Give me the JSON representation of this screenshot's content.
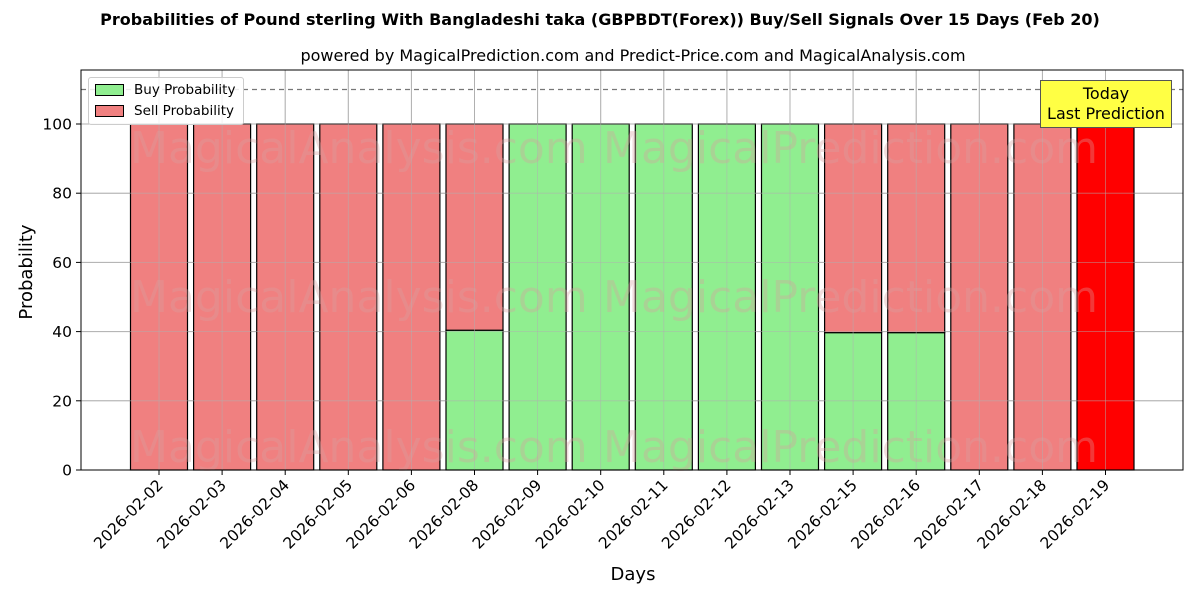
{
  "chart_data": {
    "type": "bar",
    "stacked": true,
    "title": "Probabilities of Pound sterling With Bangladeshi taka (GBPBDT(Forex)) Buy/Sell Signals Over 15 Days (Feb 20)",
    "subtitle": "powered by MagicalPrediction.com and Predict-Price.com and MagicalAnalysis.com",
    "xlabel": "Days",
    "ylabel": "Probability",
    "ylim": [
      0,
      115
    ],
    "yticks": [
      0,
      20,
      40,
      60,
      80,
      100
    ],
    "grid": true,
    "legend_position": "upper left",
    "reference_line": {
      "y": 110,
      "style": "dashed"
    },
    "categories": [
      "2026-02-02",
      "2026-02-03",
      "2026-02-04",
      "2026-02-05",
      "2026-02-06",
      "2026-02-08",
      "2026-02-09",
      "2026-02-10",
      "2026-02-11",
      "2026-02-12",
      "2026-02-13",
      "2026-02-15",
      "2026-02-16",
      "2026-02-17",
      "2026-02-18",
      "2026-02-19"
    ],
    "series": [
      {
        "name": "Buy Probability",
        "color": "#90ee90",
        "values": [
          0,
          0,
          0,
          0,
          0,
          40.4,
          100,
          100,
          100,
          100,
          100,
          39.7,
          39.7,
          0,
          0,
          0
        ]
      },
      {
        "name": "Sell Probability",
        "color": "#f08080",
        "values": [
          100,
          100,
          100,
          100,
          100,
          59.6,
          0,
          0,
          0,
          0,
          0,
          60.3,
          60.3,
          100,
          100,
          100
        ]
      }
    ],
    "highlight": {
      "category": "2026-02-19",
      "color": "#ff0000",
      "annotation": "Today\nLast Prediction"
    },
    "watermarks": [
      "MagicalAnalysis.com",
      "MagicalPrediction.com"
    ]
  },
  "legend": {
    "buy_label": "Buy Probability",
    "sell_label": "Sell Probability"
  },
  "annotation": {
    "line1": "Today",
    "line2": "Last Prediction"
  },
  "colors": {
    "buy": "#90ee90",
    "sell": "#f08080",
    "today": "#ff0000",
    "annotation_bg": "#ffff44"
  }
}
